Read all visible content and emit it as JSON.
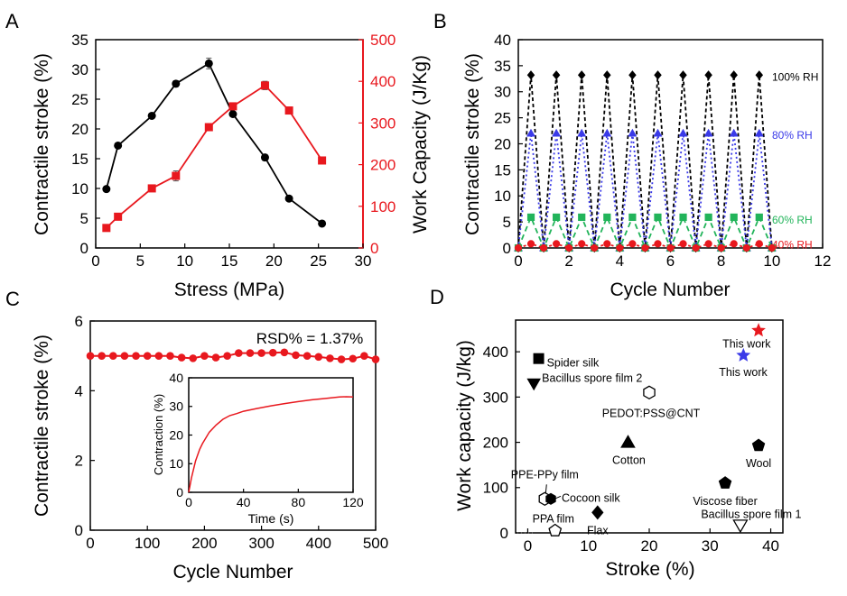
{
  "figure": {
    "panel_labels": [
      "A",
      "B",
      "C",
      "D"
    ]
  },
  "colors": {
    "black": "#000000",
    "red": "#e8181e",
    "blue": "#3a3ae8",
    "green": "#22b45a",
    "grey": "#bbbbbb"
  },
  "chart_data": [
    {
      "panel": "A",
      "type": "line",
      "xlabel": "Stress (MPa)",
      "ylabel": "Contractile stroke (%)",
      "ylabel_right": "Work Capacity (J/Kg)",
      "xlim": [
        0,
        30
      ],
      "ylim": [
        0,
        35
      ],
      "ylim_right": [
        0,
        500
      ],
      "xticks": [
        0,
        5,
        10,
        15,
        20,
        25,
        30
      ],
      "yticks": [
        0,
        5,
        10,
        15,
        20,
        25,
        30,
        35
      ],
      "yticks_right": [
        0,
        100,
        200,
        300,
        400,
        500
      ],
      "series": [
        {
          "axis": "left",
          "color": "#000000",
          "marker": "circle",
          "x": [
            1.2,
            2.5,
            6.3,
            9.0,
            12.7,
            15.4,
            19.0,
            21.7,
            25.4
          ],
          "y": [
            9.9,
            17.2,
            22.2,
            27.6,
            31.0,
            22.5,
            15.2,
            8.3,
            4.1
          ],
          "err": [
            0,
            0,
            0,
            0.5,
            0.9,
            0.4,
            0.5,
            0.4,
            0
          ]
        },
        {
          "axis": "right",
          "color": "#e8181e",
          "marker": "square",
          "x": [
            1.2,
            2.5,
            6.3,
            9.0,
            12.7,
            15.4,
            19.0,
            21.7,
            25.4
          ],
          "y": [
            48,
            75,
            143,
            173,
            290,
            340,
            390,
            330,
            210
          ],
          "err": [
            0,
            0,
            0,
            12,
            8,
            6,
            10,
            8,
            6
          ]
        }
      ]
    },
    {
      "panel": "B",
      "type": "line",
      "xlabel": "Cycle Number",
      "ylabel": "Contractile stroke (%)",
      "xlim": [
        0,
        12
      ],
      "ylim": [
        0,
        40
      ],
      "xticks": [
        0,
        2,
        4,
        6,
        8,
        10,
        12
      ],
      "yticks": [
        0,
        5,
        10,
        15,
        20,
        25,
        30,
        35,
        40
      ],
      "cycles": 10,
      "series": [
        {
          "name": "100% RH",
          "color": "#000000",
          "marker": "diamond",
          "peak": 33.2
        },
        {
          "name": "80% RH",
          "color": "#3a3ae8",
          "marker": "triangle",
          "peak": 22.0
        },
        {
          "name": "60% RH",
          "color": "#22b45a",
          "marker": "square",
          "peak": 5.9
        },
        {
          "name": "40% RH",
          "color": "#e8181e",
          "marker": "circle",
          "peak": 0.8
        }
      ]
    },
    {
      "panel": "C",
      "type": "line",
      "xlabel": "Cycle Number",
      "ylabel": "Contractile stroke (%)",
      "xlim": [
        0,
        500
      ],
      "ylim": [
        0,
        6
      ],
      "xticks": [
        0,
        100,
        200,
        300,
        400,
        500
      ],
      "yticks": [
        0,
        2,
        4,
        6
      ],
      "annotation": "RSD% = 1.37%",
      "series": [
        {
          "color": "#e8181e",
          "marker": "circle",
          "x": [
            0,
            20,
            40,
            60,
            80,
            100,
            120,
            140,
            160,
            180,
            200,
            220,
            240,
            260,
            280,
            300,
            320,
            340,
            360,
            380,
            400,
            420,
            440,
            460,
            480,
            500
          ],
          "y": [
            5.0,
            5.0,
            5.0,
            5.0,
            5.0,
            5.0,
            5.0,
            5.0,
            4.95,
            4.93,
            5.0,
            4.95,
            5.0,
            5.08,
            5.08,
            5.08,
            5.09,
            5.1,
            5.02,
            5.0,
            4.97,
            4.93,
            4.9,
            4.92,
            5.0,
            4.9
          ]
        }
      ],
      "inset": {
        "type": "line",
        "xlabel": "Time (s)",
        "ylabel": "Contraction (%)",
        "xlim": [
          0,
          120
        ],
        "ylim": [
          0,
          40
        ],
        "xticks": [
          0,
          40,
          80,
          120
        ],
        "yticks": [
          0,
          10,
          20,
          30,
          40
        ],
        "series": [
          {
            "color": "#e8181e",
            "x": [
              0,
              2,
              5,
              8,
              10,
              15,
              20,
              25,
              30,
              35,
              40,
              50,
              60,
              70,
              80,
              90,
              100,
              110,
              115,
              120
            ],
            "y": [
              0,
              5,
              11,
              15,
              17,
              21,
              23.5,
              25.5,
              26.8,
              27.5,
              28.3,
              29.3,
              30.2,
              31.0,
              31.7,
              32.3,
              32.8,
              33.3,
              33.4,
              33.3
            ]
          }
        ]
      }
    },
    {
      "panel": "D",
      "type": "scatter",
      "xlabel": "Stroke (%)",
      "ylabel": "Work capacity (J/kg)",
      "xlim": [
        -2,
        42
      ],
      "ylim": [
        0,
        470
      ],
      "xticks": [
        0,
        10,
        20,
        30,
        40
      ],
      "yticks": [
        0,
        100,
        200,
        300,
        400
      ],
      "points": [
        {
          "label": "This work",
          "x": 38,
          "y": 447,
          "marker": "star",
          "color": "#e8181e",
          "filled": true
        },
        {
          "label": "This work",
          "x": 35.5,
          "y": 392,
          "marker": "star",
          "color": "#3a3ae8",
          "filled": true
        },
        {
          "label": "Spider silk",
          "x": 1.8,
          "y": 385,
          "marker": "square",
          "color": "#000000",
          "filled": true
        },
        {
          "label": "Bacillus spore film 2",
          "x": 1.0,
          "y": 330,
          "marker": "triangle-down",
          "color": "#000000",
          "filled": true
        },
        {
          "label": "PEDOT:PSS@CNT",
          "x": 20,
          "y": 310,
          "marker": "hexagon",
          "color": "#000000",
          "filled": false
        },
        {
          "label": "Cotton",
          "x": 16.5,
          "y": 200,
          "marker": "triangle",
          "color": "#000000",
          "filled": true
        },
        {
          "label": "Wool",
          "x": 38,
          "y": 193,
          "marker": "pentagon",
          "color": "#000000",
          "filled": true
        },
        {
          "label": "Viscose fiber",
          "x": 32.5,
          "y": 110,
          "marker": "pentagon",
          "color": "#000000",
          "filled": true
        },
        {
          "label": "PPE-PPy film",
          "x": 2.8,
          "y": 75,
          "marker": "hexagon",
          "color": "#000000",
          "filled": false
        },
        {
          "label": "Cocoon silk",
          "x": 3.8,
          "y": 75,
          "marker": "hexagon",
          "color": "#000000",
          "filled": true
        },
        {
          "label": "Flax",
          "x": 11.5,
          "y": 45,
          "marker": "diamond",
          "color": "#000000",
          "filled": true
        },
        {
          "label": "Bacillus spore film 1",
          "x": 35,
          "y": 17,
          "marker": "triangle-down",
          "color": "#000000",
          "filled": false
        },
        {
          "label": "PPA film",
          "x": 4.5,
          "y": 5,
          "marker": "pentagon",
          "color": "#000000",
          "filled": false
        }
      ]
    }
  ]
}
